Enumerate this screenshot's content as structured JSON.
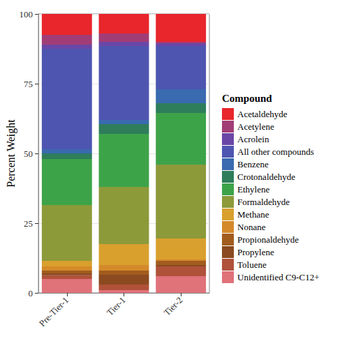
{
  "chart_data": {
    "type": "bar",
    "stacked": true,
    "grid": true,
    "legend": "right",
    "legend_title": "Compound",
    "y_label": "Percent Weight",
    "categories": [
      "Pre-Tier-1",
      "Tier-1",
      "Tier-2"
    ],
    "ylim": [
      0,
      100
    ],
    "yticks": [
      0,
      25,
      50,
      75,
      100
    ],
    "series": [
      {
        "name": "Acetaldehyde",
        "color": "#E8262B",
        "values": [
          7.5,
          7,
          10
        ]
      },
      {
        "name": "Acetylene",
        "color": "#A13D76",
        "values": [
          3.5,
          3,
          0.5
        ]
      },
      {
        "name": "Acrolein",
        "color": "#6A47A6",
        "values": [
          1.5,
          1.5,
          1
        ]
      },
      {
        "name": "All other compounds",
        "color": "#4E55B0",
        "values": [
          36,
          26.5,
          15.5
        ]
      },
      {
        "name": "Benzene",
        "color": "#3A6AAF",
        "values": [
          1.5,
          1.5,
          5
        ]
      },
      {
        "name": "Crotonaldehyde",
        "color": "#2E7D5B",
        "values": [
          2,
          3.5,
          3.5
        ]
      },
      {
        "name": "Ethylene",
        "color": "#3DA349",
        "values": [
          16.5,
          19,
          18.5
        ]
      },
      {
        "name": "Formaldehyde",
        "color": "#8C9A3A",
        "values": [
          20,
          20.5,
          26.5
        ]
      },
      {
        "name": "Methane",
        "color": "#D9A02E",
        "values": [
          2,
          7.5,
          7.5
        ]
      },
      {
        "name": "Nonane",
        "color": "#D48A2A",
        "values": [
          1.5,
          2,
          0.5
        ]
      },
      {
        "name": "Propionaldehyde",
        "color": "#A15C1E",
        "values": [
          1,
          1.5,
          1.5
        ]
      },
      {
        "name": "Propylene",
        "color": "#8B4A20",
        "values": [
          0.7,
          3.5,
          0.5
        ]
      },
      {
        "name": "Toluene",
        "color": "#B0523A",
        "values": [
          1.3,
          2,
          3.5
        ]
      },
      {
        "name": "Unidentified C9-C12+",
        "color": "#E0727A",
        "values": [
          5,
          1,
          6
        ]
      }
    ]
  }
}
